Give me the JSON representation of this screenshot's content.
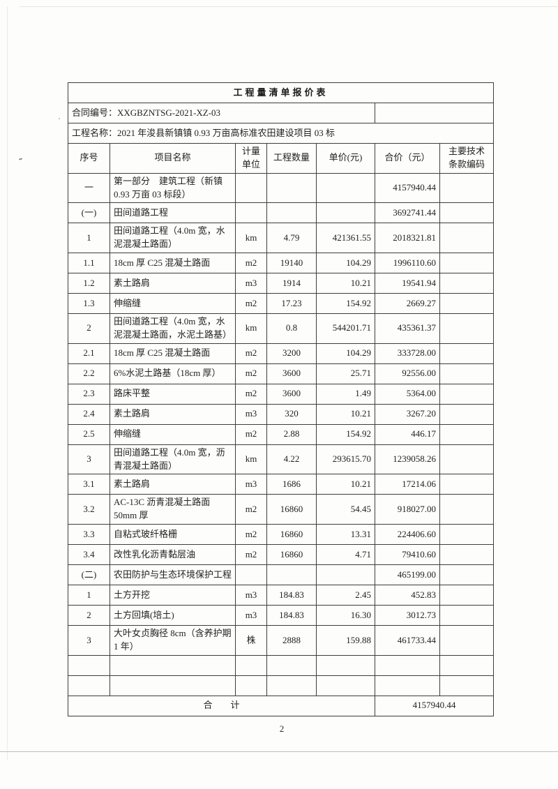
{
  "doc": {
    "title": "工程量清单报价表",
    "contract": {
      "label": "合同编号：",
      "value": "XXGBZNTSG-2021-XZ-03"
    },
    "project": {
      "label": "工程名称：",
      "value": "2021 年浚县新镇镇 0.93 万亩高标准农田建设项目 03 标"
    },
    "page_number": "2"
  },
  "table": {
    "headers": [
      {
        "name": "serial",
        "lines": [
          "序号"
        ]
      },
      {
        "name": "item-name",
        "lines": [
          "项目名称"
        ]
      },
      {
        "name": "unit",
        "lines": [
          "计量",
          "单位"
        ]
      },
      {
        "name": "quantity",
        "lines": [
          "工程数量"
        ]
      },
      {
        "name": "unit-price",
        "lines": [
          "单价(元)"
        ]
      },
      {
        "name": "amount",
        "lines": [
          "合价（元）"
        ]
      },
      {
        "name": "tech-code",
        "lines": [
          "主要技术",
          "条款编码"
        ]
      }
    ],
    "rows": [
      {
        "no": "一",
        "name": "第一部分　建筑工程（新镇 0.93 万亩 03 标段）",
        "unit": "",
        "qty": "",
        "price": "",
        "amount": "4157940.44",
        "code": ""
      },
      {
        "no": "(一)",
        "name": "田间道路工程",
        "unit": "",
        "qty": "",
        "price": "",
        "amount": "3692741.44",
        "code": ""
      },
      {
        "no": "1",
        "name": "田间道路工程（4.0m 宽，水泥混凝土路面）",
        "unit": "km",
        "qty": "4.79",
        "price": "421361.55",
        "amount": "2018321.81",
        "code": ""
      },
      {
        "no": "1.1",
        "name": "18cm 厚 C25 混凝土路面",
        "unit": "m2",
        "qty": "19140",
        "price": "104.29",
        "amount": "1996110.60",
        "code": ""
      },
      {
        "no": "1.2",
        "name": "素土路肩",
        "unit": "m3",
        "qty": "1914",
        "price": "10.21",
        "amount": "19541.94",
        "code": ""
      },
      {
        "no": "1.3",
        "name": "伸缩缝",
        "unit": "m2",
        "qty": "17.23",
        "price": "154.92",
        "amount": "2669.27",
        "code": ""
      },
      {
        "no": "2",
        "name": "田间道路工程（4.0m 宽，水泥混凝土路面，水泥土路基）",
        "unit": "km",
        "qty": "0.8",
        "price": "544201.71",
        "amount": "435361.37",
        "code": ""
      },
      {
        "no": "2.1",
        "name": "18cm 厚 C25 混凝土路面",
        "unit": "m2",
        "qty": "3200",
        "price": "104.29",
        "amount": "333728.00",
        "code": ""
      },
      {
        "no": "2.2",
        "name": "6%水泥土路基（18cm 厚）",
        "unit": "m2",
        "qty": "3600",
        "price": "25.71",
        "amount": "92556.00",
        "code": ""
      },
      {
        "no": "2.3",
        "name": "路床平整",
        "unit": "m2",
        "qty": "3600",
        "price": "1.49",
        "amount": "5364.00",
        "code": ""
      },
      {
        "no": "2.4",
        "name": "素土路肩",
        "unit": "m3",
        "qty": "320",
        "price": "10.21",
        "amount": "3267.20",
        "code": ""
      },
      {
        "no": "2.5",
        "name": "伸缩缝",
        "unit": "m2",
        "qty": "2.88",
        "price": "154.92",
        "amount": "446.17",
        "code": ""
      },
      {
        "no": "3",
        "name": "田间道路工程（4.0m 宽，沥青混凝土路面）",
        "unit": "km",
        "qty": "4.22",
        "price": "293615.70",
        "amount": "1239058.26",
        "code": ""
      },
      {
        "no": "3.1",
        "name": "素土路肩",
        "unit": "m3",
        "qty": "1686",
        "price": "10.21",
        "amount": "17214.06",
        "code": ""
      },
      {
        "no": "3.2",
        "name": "AC-13C 沥青混凝土路面 50mm 厚",
        "unit": "m2",
        "qty": "16860",
        "price": "54.45",
        "amount": "918027.00",
        "code": ""
      },
      {
        "no": "3.3",
        "name": "自粘式玻纤格栅",
        "unit": "m2",
        "qty": "16860",
        "price": "13.31",
        "amount": "224406.60",
        "code": ""
      },
      {
        "no": "3.4",
        "name": "改性乳化沥青黏层油",
        "unit": "m2",
        "qty": "16860",
        "price": "4.71",
        "amount": "79410.60",
        "code": ""
      },
      {
        "no": "(二)",
        "name": "农田防护与生态环境保护工程",
        "unit": "",
        "qty": "",
        "price": "",
        "amount": "465199.00",
        "code": ""
      },
      {
        "no": "1",
        "name": "土方开挖",
        "unit": "m3",
        "qty": "184.83",
        "price": "2.45",
        "amount": "452.83",
        "code": ""
      },
      {
        "no": "2",
        "name": "土方回填(培土)",
        "unit": "m3",
        "qty": "184.83",
        "price": "16.30",
        "amount": "3012.73",
        "code": ""
      },
      {
        "no": "3",
        "name": "大叶女贞胸径 8cm（含养护期 1 年）",
        "unit": "株",
        "qty": "2888",
        "price": "159.88",
        "amount": "461733.44",
        "code": ""
      },
      {
        "no": "",
        "name": "",
        "unit": "",
        "qty": "",
        "price": "",
        "amount": "",
        "code": ""
      },
      {
        "no": "",
        "name": "",
        "unit": "",
        "qty": "",
        "price": "",
        "amount": "",
        "code": ""
      }
    ],
    "total": {
      "label": "合　　计",
      "value": "4157940.44"
    }
  }
}
